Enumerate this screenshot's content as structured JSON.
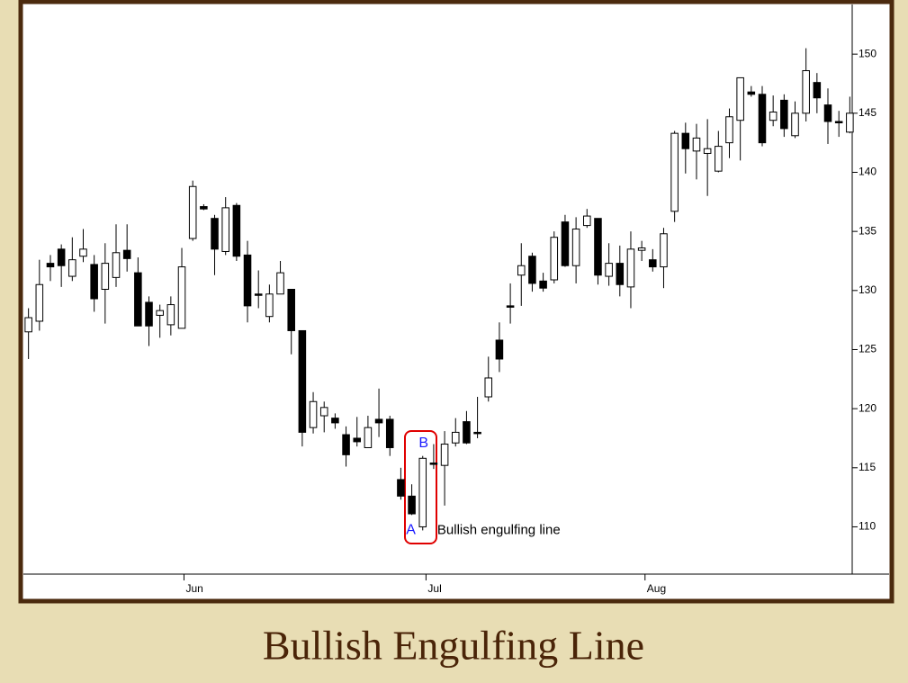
{
  "chart_data": {
    "type": "candlestick",
    "title": "Bullish Engulfing Line",
    "open": [
      126.5,
      127.4,
      132.3,
      133.5,
      131.2,
      132.9,
      132.2,
      130.1,
      131.1,
      133.4,
      131.5,
      129.0,
      127.9,
      127.1,
      126.8,
      134.4,
      137.1,
      136.1,
      133.3,
      137.2,
      133.0,
      129.7,
      127.8,
      129.7,
      130.1,
      126.6,
      118.4,
      119.4,
      119.2,
      117.8,
      117.5,
      116.7,
      119.1,
      119.1,
      114.0,
      112.6,
      110.0,
      115.4,
      115.2,
      117.1,
      118.9,
      118.0,
      121.0,
      125.8,
      128.7,
      131.3,
      132.9,
      130.8,
      130.9,
      135.8,
      132.1,
      135.5,
      136.1,
      131.2,
      132.3,
      130.3,
      133.4,
      132.6,
      132.0,
      136.7,
      143.3,
      141.8,
      141.6,
      140.1,
      142.5,
      144.4,
      146.8,
      146.6,
      144.4,
      146.1,
      143.1,
      145.0,
      147.6,
      145.7,
      144.3,
      143.4
    ],
    "high": [
      128.5,
      132.6,
      133.0,
      133.9,
      134.5,
      135.2,
      133.0,
      134.0,
      135.6,
      135.6,
      132.8,
      129.5,
      128.8,
      129.5,
      133.6,
      139.3,
      137.3,
      136.4,
      137.9,
      137.4,
      134.2,
      131.7,
      130.5,
      132.5,
      130.1,
      126.6,
      121.4,
      120.6,
      119.6,
      118.5,
      119.3,
      119.4,
      121.7,
      119.4,
      115.0,
      113.6,
      116.0,
      117.0,
      118.1,
      119.2,
      119.8,
      121.0,
      124.4,
      127.3,
      130.6,
      134.0,
      133.2,
      131.5,
      135.0,
      136.4,
      136.2,
      136.9,
      136.1,
      134.0,
      133.8,
      135.0,
      134.2,
      133.5,
      135.3,
      143.5,
      144.2,
      144.1,
      144.5,
      143.5,
      145.4,
      148.0,
      147.3,
      147.3,
      146.5,
      146.6,
      146.0,
      150.5,
      148.4,
      147.1,
      145.2,
      146.4
    ],
    "low": [
      124.2,
      126.6,
      130.8,
      130.3,
      130.8,
      132.4,
      128.2,
      127.2,
      130.3,
      131.6,
      127.0,
      125.3,
      126.0,
      126.2,
      126.8,
      134.2,
      136.8,
      131.3,
      133.0,
      132.5,
      127.3,
      128.5,
      127.3,
      129.7,
      124.6,
      116.8,
      117.9,
      118.0,
      118.3,
      115.1,
      116.8,
      116.7,
      117.6,
      116.0,
      112.3,
      111.0,
      109.7,
      114.9,
      111.8,
      116.8,
      117.0,
      117.5,
      120.6,
      123.1,
      127.2,
      128.7,
      129.9,
      129.9,
      130.6,
      132.0,
      130.6,
      135.3,
      130.5,
      130.4,
      129.5,
      128.5,
      132.5,
      131.6,
      130.2,
      135.8,
      139.9,
      139.4,
      138.0,
      140.0,
      141.2,
      141.0,
      146.4,
      142.2,
      143.9,
      143.0,
      142.9,
      144.3,
      145.0,
      142.4,
      143.0,
      143.3
    ],
    "close": [
      127.7,
      130.5,
      132.0,
      132.1,
      132.6,
      133.5,
      129.3,
      132.3,
      133.2,
      132.7,
      127.0,
      127.0,
      128.3,
      128.8,
      132.0,
      138.8,
      136.9,
      133.5,
      137.0,
      132.9,
      128.7,
      129.6,
      129.7,
      131.5,
      126.6,
      118.0,
      120.6,
      120.1,
      118.8,
      116.1,
      117.2,
      118.4,
      118.8,
      116.7,
      112.6,
      111.1,
      115.8,
      115.3,
      117.0,
      118.0,
      117.1,
      117.9,
      122.6,
      124.2,
      128.6,
      132.1,
      130.6,
      130.2,
      134.5,
      132.1,
      135.2,
      136.3,
      131.3,
      132.3,
      130.5,
      133.5,
      133.6,
      132.0,
      134.8,
      143.3,
      142.0,
      142.9,
      142.0,
      142.2,
      144.7,
      148.0,
      146.6,
      142.5,
      145.1,
      143.7,
      145.0,
      148.6,
      146.3,
      144.3,
      144.2,
      145.0
    ],
    "up_color": "#ffffff",
    "down_color": "#000000",
    "edge_color": "#000000",
    "xlim": [
      -0.3,
      75.3
    ],
    "xticks": [
      {
        "value": 14.2,
        "label": "Jun"
      },
      {
        "value": 36.3,
        "label": "Jul"
      },
      {
        "value": 56.3,
        "label": "Aug"
      }
    ],
    "ylim": [
      106,
      154.2
    ],
    "yticks": [
      110,
      115,
      120,
      125,
      130,
      135,
      140,
      145,
      150
    ],
    "annotations": [
      {
        "text": "A",
        "color": "#1a1aff"
      },
      {
        "text": "B",
        "color": "#1a1aff"
      },
      {
        "text": "Bullish engulfing line",
        "color": "#000000"
      }
    ]
  }
}
